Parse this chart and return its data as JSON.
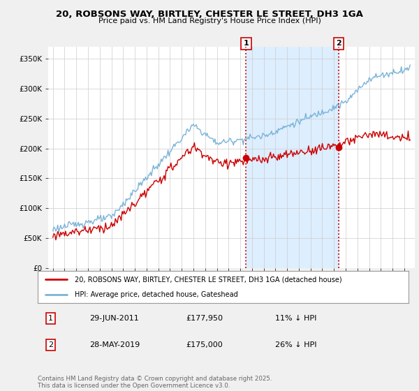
{
  "title": "20, ROBSONS WAY, BIRTLEY, CHESTER LE STREET, DH3 1GA",
  "subtitle": "Price paid vs. HM Land Registry's House Price Index (HPI)",
  "ylim": [
    0,
    370000
  ],
  "yticks": [
    0,
    50000,
    100000,
    150000,
    200000,
    250000,
    300000,
    350000
  ],
  "ytick_labels": [
    "£0",
    "£50K",
    "£100K",
    "£150K",
    "£200K",
    "£250K",
    "£300K",
    "£350K"
  ],
  "hpi_color": "#7ab4d8",
  "price_color": "#cc0000",
  "vline_color": "#cc0000",
  "shade_color": "#ddeeff",
  "transaction1_date": 2011.49,
  "transaction1_price": 177950,
  "transaction1_label": "1",
  "transaction2_date": 2019.41,
  "transaction2_price": 175000,
  "transaction2_label": "2",
  "legend_house_label": "20, ROBSONS WAY, BIRTLEY, CHESTER LE STREET, DH3 1GA (detached house)",
  "legend_hpi_label": "HPI: Average price, detached house, Gateshead",
  "table_row1": [
    "1",
    "29-JUN-2011",
    "£177,950",
    "11% ↓ HPI"
  ],
  "table_row2": [
    "2",
    "28-MAY-2019",
    "£175,000",
    "26% ↓ HPI"
  ],
  "footer": "Contains HM Land Registry data © Crown copyright and database right 2025.\nThis data is licensed under the Open Government Licence v3.0.",
  "background_color": "#f0f0f0",
  "plot_background": "#ffffff",
  "grid_color": "#cccccc",
  "xlim_left": 1994.6,
  "xlim_right": 2025.9
}
